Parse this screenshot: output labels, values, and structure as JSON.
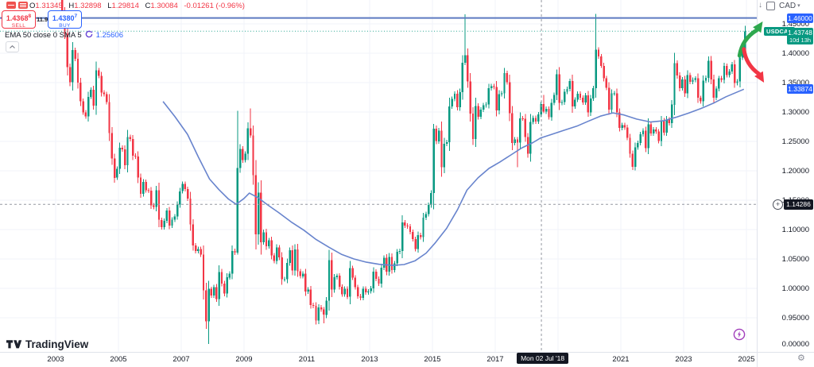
{
  "header": {
    "ohlc": {
      "o_label": "O",
      "o_value": "1.31345",
      "h_label": "H",
      "h_value": "1.32898",
      "l_label": "L",
      "l_value": "1.29814",
      "c_label": "C",
      "c_value": "1.30084",
      "change": "-0.01261 (-0.96%)"
    },
    "sell_button": {
      "price": "1.4368",
      "sup": "8",
      "label": "SELL"
    },
    "spread": "11.9",
    "buy_button": {
      "price": "1.4380",
      "sup": "7",
      "label": "BUY"
    },
    "indicator_legend": {
      "text": "EMA 50 close 0 SMA 5",
      "value": "1.25606"
    },
    "currency_selector": "CAD"
  },
  "chart_data": {
    "type": "candlestick",
    "symbol": "USDCAD",
    "interval": "monthly",
    "start": "2003-01",
    "price_axis_ticks": [
      "1.45000",
      "1.40000",
      "1.35000",
      "1.30000",
      "1.25000",
      "1.20000",
      "1.15000",
      "1.10000",
      "1.05000",
      "1.00000",
      "0.95000"
    ],
    "bottom_tick": "0.00000",
    "time_axis_ticks": [
      2003,
      2005,
      2007,
      2009,
      2011,
      2013,
      2015,
      2017,
      2021,
      2023,
      2025
    ],
    "candles": {
      "first_open": 1.575,
      "auto_wick": {
        "frac": 0.25,
        "min": 0.004
      },
      "closes_by_year": {
        "2003": [
          1.5276,
          1.4989,
          1.4693,
          1.4334,
          1.3762,
          1.3505,
          1.4054,
          1.3907,
          1.3499,
          1.3181,
          1.2996,
          1.2923
        ],
        "2004": [
          1.326,
          1.3376,
          1.3106,
          1.3709,
          1.3615,
          1.3334,
          1.3306,
          1.317,
          1.2639,
          1.221,
          1.1882,
          1.2034
        ],
        "2005": [
          1.2392,
          1.2363,
          1.2094,
          1.2573,
          1.254,
          1.2256,
          1.2243,
          1.1882,
          1.1611,
          1.1811,
          1.1666,
          1.1659
        ],
        "2006": [
          1.1415,
          1.1383,
          1.1671,
          1.1165,
          1.1043,
          1.115,
          1.1321,
          1.1069,
          1.1168,
          1.1223,
          1.1426,
          1.1652
        ],
        "2007": [
          1.1777,
          1.1687,
          1.1529,
          1.1087,
          1.073,
          1.0634,
          1.0672,
          1.0575,
          0.9963,
          0.9439,
          0.999,
          0.9881
        ],
        "2008": [
          1.0022,
          0.9818,
          1.0279,
          1.0084,
          0.9911,
          1.0186,
          1.0252,
          1.0634,
          1.0606,
          1.2045,
          1.2372,
          1.218
        ],
        "2009": [
          1.2292,
          1.272,
          1.2602,
          1.1929,
          1.0917,
          1.1625,
          1.0785,
          1.0955,
          1.0715,
          1.0815,
          1.056,
          1.0466
        ],
        "2010": [
          1.0693,
          1.0525,
          1.0156,
          1.0158,
          1.0435,
          1.0646,
          1.0305,
          1.0663,
          1.029,
          1.0206,
          1.0253,
          0.9946
        ],
        "2011": [
          0.9978,
          0.9718,
          0.9703,
          0.9451,
          0.9676,
          0.9643,
          0.9551,
          0.9791,
          1.0482,
          0.9978,
          1.0189,
          1.0213
        ],
        "2012": [
          1.0025,
          0.9898,
          0.9991,
          0.9855,
          1.0346,
          1.0181,
          1.0021,
          0.9865,
          0.9837,
          0.9995,
          0.9935,
          0.9949
        ],
        "2013": [
          0.9998,
          1.0285,
          1.016,
          1.0082,
          1.0353,
          1.052,
          1.0281,
          1.0536,
          1.0308,
          1.0428,
          1.0622,
          1.0636
        ],
        "2014": [
          1.112,
          1.1065,
          1.1053,
          1.0961,
          1.0837,
          1.067,
          1.0907,
          1.0873,
          1.12,
          1.1266,
          1.142,
          1.1621
        ],
        "2015": [
          1.2717,
          1.2503,
          1.2684,
          1.2058,
          1.2459,
          1.2488,
          1.3092,
          1.3223,
          1.3313,
          1.3083,
          1.3335,
          1.3839
        ],
        "2016": [
          1.3969,
          1.3522,
          1.2972,
          1.2544,
          1.3103,
          1.2917,
          1.3038,
          1.3113,
          1.3129,
          1.3408,
          1.3437,
          1.3427
        ],
        "2017": [
          1.3028,
          1.3305,
          1.3317,
          1.3662,
          1.3504,
          1.2977,
          1.2475,
          1.2536,
          1.248,
          1.2893,
          1.2888,
          1.2573
        ],
        "2018": [
          1.2293,
          1.2833,
          1.2898,
          1.2836,
          1.2957,
          1.31345,
          1.30084,
          1.3053,
          1.2911,
          1.3158,
          1.3292,
          1.3639
        ],
        "2019": [
          1.3154,
          1.3169,
          1.3347,
          1.3391,
          1.3527,
          1.3093,
          1.321,
          1.331,
          1.3243,
          1.3164,
          1.3286,
          1.299
        ],
        "2020": [
          1.3232,
          1.3404,
          1.4058,
          1.3945,
          1.3787,
          1.3576,
          1.3412,
          1.3042,
          1.3319,
          1.332,
          1.2995,
          1.2732
        ],
        "2021": [
          1.2779,
          1.2738,
          1.2562,
          1.229,
          1.2069,
          1.2398,
          1.2475,
          1.2622,
          1.268,
          1.2388,
          1.2793,
          1.2637
        ],
        "2022": [
          1.2701,
          1.2668,
          1.2505,
          1.2846,
          1.2648,
          1.2873,
          1.281,
          1.3125,
          1.3829,
          1.3621,
          1.3407,
          1.3554
        ],
        "2023": [
          1.3316,
          1.3631,
          1.3516,
          1.3545,
          1.3571,
          1.324,
          1.3185,
          1.3535,
          1.358,
          1.3875,
          1.3556,
          1.3243
        ],
        "2024": [
          1.3398,
          1.3573,
          1.3544,
          1.3781,
          1.363,
          1.3687,
          1.3809,
          1.3492,
          1.3521,
          1.3925,
          1.401,
          1.43748
        ]
      },
      "hl_overrides": {
        "2007-11": {
          "l": 0.9056
        },
        "2008-10": {
          "h": 1.3017,
          "l": 1.0572
        },
        "2009-03": {
          "h": 1.3064
        },
        "2011-07": {
          "l": 0.9407
        },
        "2015-01": {
          "h": 1.2799
        },
        "2016-01": {
          "h": 1.466
        },
        "2017-09": {
          "l": 1.2061
        },
        "2018-07": {
          "h": 1.32898,
          "l": 1.29814
        },
        "2020-03": {
          "h": 1.4668
        },
        "2021-06": {
          "l": 1.2007
        },
        "2024-12": {
          "h": 1.4467
        }
      }
    },
    "ema": {
      "name": "EMA 50",
      "last_value": "1.33874",
      "points": [
        [
          2006.42,
          1.318
        ],
        [
          2006.8,
          1.292
        ],
        [
          2007.2,
          1.262
        ],
        [
          2007.55,
          1.223
        ],
        [
          2007.9,
          1.186
        ],
        [
          2008.2,
          1.168
        ],
        [
          2008.5,
          1.152
        ],
        [
          2008.75,
          1.143
        ],
        [
          2009.0,
          1.153
        ],
        [
          2009.17,
          1.162
        ],
        [
          2009.45,
          1.154
        ],
        [
          2009.75,
          1.142
        ],
        [
          2010.1,
          1.129
        ],
        [
          2010.5,
          1.113
        ],
        [
          2010.9,
          1.099
        ],
        [
          2011.3,
          1.083
        ],
        [
          2011.7,
          1.07
        ],
        [
          2012.1,
          1.058
        ],
        [
          2012.5,
          1.05
        ],
        [
          2012.9,
          1.0445
        ],
        [
          2013.3,
          1.041
        ],
        [
          2013.75,
          1.039
        ],
        [
          2014.1,
          1.0405
        ],
        [
          2014.45,
          1.047
        ],
        [
          2014.8,
          1.06
        ],
        [
          2015.1,
          1.078
        ],
        [
          2015.45,
          1.102
        ],
        [
          2015.8,
          1.134
        ],
        [
          2016.1,
          1.167
        ],
        [
          2016.45,
          1.188
        ],
        [
          2016.8,
          1.204
        ],
        [
          2017.15,
          1.215
        ],
        [
          2017.5,
          1.227
        ],
        [
          2017.85,
          1.239
        ],
        [
          2018.2,
          1.248
        ],
        [
          2018.45,
          1.256
        ],
        [
          2018.8,
          1.262
        ],
        [
          2019.2,
          1.269
        ],
        [
          2019.6,
          1.276
        ],
        [
          2019.95,
          1.284
        ],
        [
          2020.35,
          1.293
        ],
        [
          2020.75,
          1.2985
        ],
        [
          2021.1,
          1.295
        ],
        [
          2021.5,
          1.288
        ],
        [
          2021.95,
          1.283
        ],
        [
          2022.35,
          1.285
        ],
        [
          2022.75,
          1.291
        ],
        [
          2023.15,
          1.298
        ],
        [
          2023.55,
          1.306
        ],
        [
          2023.95,
          1.315
        ],
        [
          2024.35,
          1.326
        ],
        [
          2024.92,
          1.33874
        ]
      ]
    },
    "lines": {
      "horizontal_blue": {
        "price": 1.46,
        "label": "1.46000"
      },
      "current_price": {
        "price": 1.43748,
        "label": "1.43748",
        "countdown": "10d 13h",
        "symbol_tag": "USDCAD"
      }
    },
    "crosshair": {
      "time": 2018.47,
      "time_label": "Mon 02 Jul '18",
      "price": 1.14286,
      "price_label": "1.14286"
    },
    "annotations": {
      "arrow_up": {
        "from": [
          2024.78,
          1.396
        ],
        "to": [
          2025.52,
          1.454
        ]
      },
      "arrow_down": {
        "from": [
          2024.92,
          1.407
        ],
        "to": [
          2025.56,
          1.35
        ]
      }
    }
  },
  "footer": {
    "logo_text": "TradingView"
  },
  "colors": {
    "up": "#089981",
    "down": "#f23645",
    "accent_blue": "#2962ff",
    "badge_dark": "#131722",
    "ema_line": "#6884cd",
    "line_blue": "#5d7ac1",
    "grid": "#f0f3fa",
    "separator": "#e0e3eb",
    "crosshair": "#9598a1",
    "arrow_up": "#2ea84e",
    "arrow_down": "#f23645",
    "purple": "#a13dbb"
  }
}
